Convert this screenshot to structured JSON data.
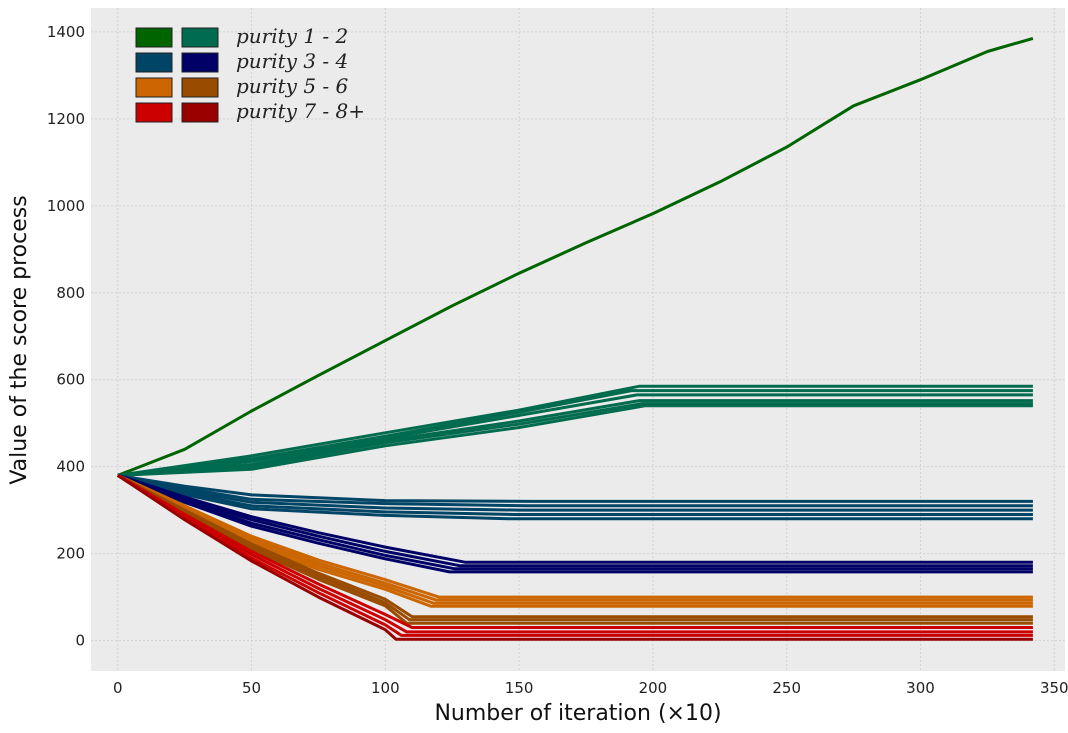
{
  "chart_data": {
    "type": "line",
    "title": "",
    "xlabel": "Number of iteration (×10)",
    "ylabel": "Value of the score process",
    "xlim": [
      -10,
      354
    ],
    "ylim": [
      -70,
      1455
    ],
    "xticks": [
      0,
      50,
      100,
      150,
      200,
      250,
      300,
      350
    ],
    "yticks": [
      0,
      200,
      400,
      600,
      800,
      1000,
      1200,
      1400
    ],
    "grid": true,
    "background": "#ebebeb",
    "legend": {
      "placement": "top-left",
      "entries": [
        {
          "label": "purity 1 - 2",
          "colors": [
            "#006400",
            "#006B4E"
          ]
        },
        {
          "label": "purity 3 - 4",
          "colors": [
            "#004466",
            "#000066"
          ]
        },
        {
          "label": "purity 5 - 6",
          "colors": [
            "#CC6600",
            "#994C00"
          ]
        },
        {
          "label": "purity 7 - 8+",
          "colors": [
            "#CC0000",
            "#990000"
          ]
        }
      ]
    },
    "series": [
      {
        "color": "#006400",
        "points": [
          [
            0,
            380
          ],
          [
            25,
            440
          ],
          [
            50,
            528
          ],
          [
            75,
            610
          ],
          [
            100,
            690
          ],
          [
            125,
            770
          ],
          [
            150,
            845
          ],
          [
            175,
            915
          ],
          [
            200,
            982
          ],
          [
            225,
            1055
          ],
          [
            250,
            1135
          ],
          [
            275,
            1230
          ],
          [
            300,
            1290
          ],
          [
            325,
            1355
          ],
          [
            342,
            1385
          ]
        ]
      },
      {
        "color": "#006B4E",
        "points": [
          [
            0,
            380
          ],
          [
            50,
            425
          ],
          [
            100,
            478
          ],
          [
            150,
            530
          ],
          [
            195,
            585
          ],
          [
            342,
            585
          ]
        ]
      },
      {
        "color": "#006B4E",
        "points": [
          [
            0,
            380
          ],
          [
            50,
            418
          ],
          [
            100,
            470
          ],
          [
            150,
            525
          ],
          [
            192,
            575
          ],
          [
            342,
            575
          ]
        ]
      },
      {
        "color": "#006B4E",
        "points": [
          [
            0,
            380
          ],
          [
            50,
            412
          ],
          [
            100,
            465
          ],
          [
            150,
            518
          ],
          [
            194,
            565
          ],
          [
            342,
            565
          ]
        ]
      },
      {
        "color": "#006B4E",
        "points": [
          [
            0,
            380
          ],
          [
            50,
            405
          ],
          [
            100,
            460
          ],
          [
            150,
            505
          ],
          [
            195,
            552
          ],
          [
            342,
            552
          ]
        ]
      },
      {
        "color": "#006B4E",
        "points": [
          [
            0,
            380
          ],
          [
            50,
            400
          ],
          [
            100,
            455
          ],
          [
            150,
            498
          ],
          [
            196,
            545
          ],
          [
            342,
            545
          ]
        ]
      },
      {
        "color": "#006B4E",
        "points": [
          [
            0,
            380
          ],
          [
            50,
            394
          ],
          [
            100,
            448
          ],
          [
            150,
            490
          ],
          [
            197,
            540
          ],
          [
            342,
            540
          ]
        ]
      },
      {
        "color": "#004466",
        "points": [
          [
            0,
            380
          ],
          [
            25,
            355
          ],
          [
            50,
            335
          ],
          [
            100,
            322
          ],
          [
            155,
            320
          ],
          [
            342,
            320
          ]
        ]
      },
      {
        "color": "#004466",
        "points": [
          [
            0,
            380
          ],
          [
            25,
            350
          ],
          [
            50,
            325
          ],
          [
            100,
            315
          ],
          [
            153,
            310
          ],
          [
            342,
            310
          ]
        ]
      },
      {
        "color": "#004466",
        "points": [
          [
            0,
            380
          ],
          [
            25,
            345
          ],
          [
            50,
            318
          ],
          [
            100,
            305
          ],
          [
            150,
            300
          ],
          [
            342,
            300
          ]
        ]
      },
      {
        "color": "#004466",
        "points": [
          [
            0,
            380
          ],
          [
            25,
            340
          ],
          [
            50,
            310
          ],
          [
            100,
            296
          ],
          [
            148,
            290
          ],
          [
            342,
            290
          ]
        ]
      },
      {
        "color": "#004466",
        "points": [
          [
            0,
            380
          ],
          [
            25,
            336
          ],
          [
            50,
            303
          ],
          [
            100,
            288
          ],
          [
            146,
            280
          ],
          [
            342,
            280
          ]
        ]
      },
      {
        "color": "#000066",
        "points": [
          [
            0,
            380
          ],
          [
            25,
            330
          ],
          [
            50,
            285
          ],
          [
            75,
            248
          ],
          [
            100,
            215
          ],
          [
            130,
            180
          ],
          [
            342,
            180
          ]
        ]
      },
      {
        "color": "#000066",
        "points": [
          [
            0,
            380
          ],
          [
            25,
            326
          ],
          [
            50,
            278
          ],
          [
            75,
            240
          ],
          [
            100,
            205
          ],
          [
            128,
            172
          ],
          [
            342,
            172
          ]
        ]
      },
      {
        "color": "#000066",
        "points": [
          [
            0,
            380
          ],
          [
            25,
            322
          ],
          [
            50,
            270
          ],
          [
            75,
            232
          ],
          [
            100,
            196
          ],
          [
            126,
            165
          ],
          [
            342,
            165
          ]
        ]
      },
      {
        "color": "#000066",
        "points": [
          [
            0,
            380
          ],
          [
            25,
            318
          ],
          [
            50,
            263
          ],
          [
            75,
            224
          ],
          [
            100,
            188
          ],
          [
            124,
            158
          ],
          [
            342,
            158
          ]
        ]
      },
      {
        "color": "#CC6600",
        "points": [
          [
            0,
            380
          ],
          [
            25,
            310
          ],
          [
            50,
            240
          ],
          [
            75,
            185
          ],
          [
            100,
            140
          ],
          [
            120,
            100
          ],
          [
            342,
            100
          ]
        ]
      },
      {
        "color": "#CC6600",
        "points": [
          [
            0,
            380
          ],
          [
            25,
            306
          ],
          [
            50,
            234
          ],
          [
            75,
            178
          ],
          [
            100,
            132
          ],
          [
            119,
            93
          ],
          [
            342,
            93
          ]
        ]
      },
      {
        "color": "#CC6600",
        "points": [
          [
            0,
            380
          ],
          [
            25,
            302
          ],
          [
            50,
            228
          ],
          [
            75,
            171
          ],
          [
            100,
            125
          ],
          [
            118,
            86
          ],
          [
            342,
            86
          ]
        ]
      },
      {
        "color": "#CC6600",
        "points": [
          [
            0,
            380
          ],
          [
            25,
            298
          ],
          [
            50,
            222
          ],
          [
            75,
            164
          ],
          [
            100,
            118
          ],
          [
            117,
            79
          ],
          [
            342,
            79
          ]
        ]
      },
      {
        "color": "#994C00",
        "points": [
          [
            0,
            380
          ],
          [
            25,
            300
          ],
          [
            50,
            222
          ],
          [
            75,
            155
          ],
          [
            100,
            95
          ],
          [
            110,
            55
          ],
          [
            342,
            55
          ]
        ]
      },
      {
        "color": "#994C00",
        "points": [
          [
            0,
            380
          ],
          [
            25,
            296
          ],
          [
            50,
            216
          ],
          [
            75,
            148
          ],
          [
            100,
            87
          ],
          [
            109,
            48
          ],
          [
            342,
            48
          ]
        ]
      },
      {
        "color": "#994C00",
        "points": [
          [
            0,
            380
          ],
          [
            25,
            292
          ],
          [
            50,
            210
          ],
          [
            75,
            141
          ],
          [
            100,
            80
          ],
          [
            108,
            40
          ],
          [
            342,
            40
          ]
        ]
      },
      {
        "color": "#CC0000",
        "points": [
          [
            0,
            380
          ],
          [
            25,
            290
          ],
          [
            50,
            205
          ],
          [
            75,
            130
          ],
          [
            100,
            60
          ],
          [
            110,
            30
          ],
          [
            342,
            30
          ]
        ]
      },
      {
        "color": "#CC0000",
        "points": [
          [
            0,
            380
          ],
          [
            25,
            286
          ],
          [
            50,
            198
          ],
          [
            75,
            120
          ],
          [
            100,
            48
          ],
          [
            108,
            20
          ],
          [
            342,
            20
          ]
        ]
      },
      {
        "color": "#CC0000",
        "points": [
          [
            0,
            380
          ],
          [
            25,
            282
          ],
          [
            50,
            190
          ],
          [
            75,
            110
          ],
          [
            100,
            36
          ],
          [
            106,
            12
          ],
          [
            342,
            12
          ]
        ]
      },
      {
        "color": "#990000",
        "points": [
          [
            0,
            380
          ],
          [
            25,
            278
          ],
          [
            50,
            183
          ],
          [
            75,
            100
          ],
          [
            100,
            25
          ],
          [
            104,
            3
          ],
          [
            342,
            3
          ]
        ]
      }
    ]
  }
}
